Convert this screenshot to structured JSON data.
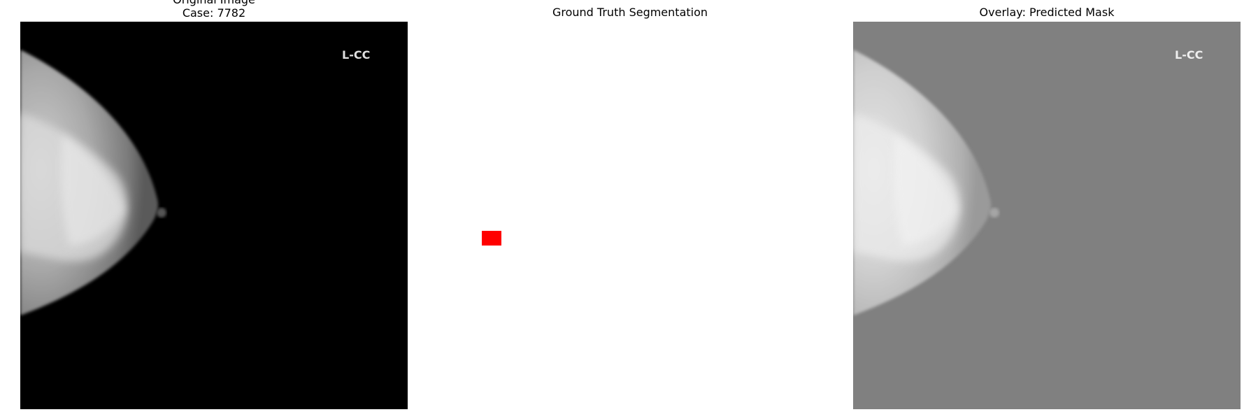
{
  "panels": [
    {
      "title_line1": "Original Image",
      "title_line2": "Case: 7782",
      "view_label": "L-CC",
      "background": "#000000"
    },
    {
      "title": "Ground Truth Segmentation",
      "background": "#ffffff",
      "mask_color": "#ff0000"
    },
    {
      "title": "Overlay: Predicted Mask",
      "view_label": "L-CC",
      "background": "#808080"
    }
  ]
}
